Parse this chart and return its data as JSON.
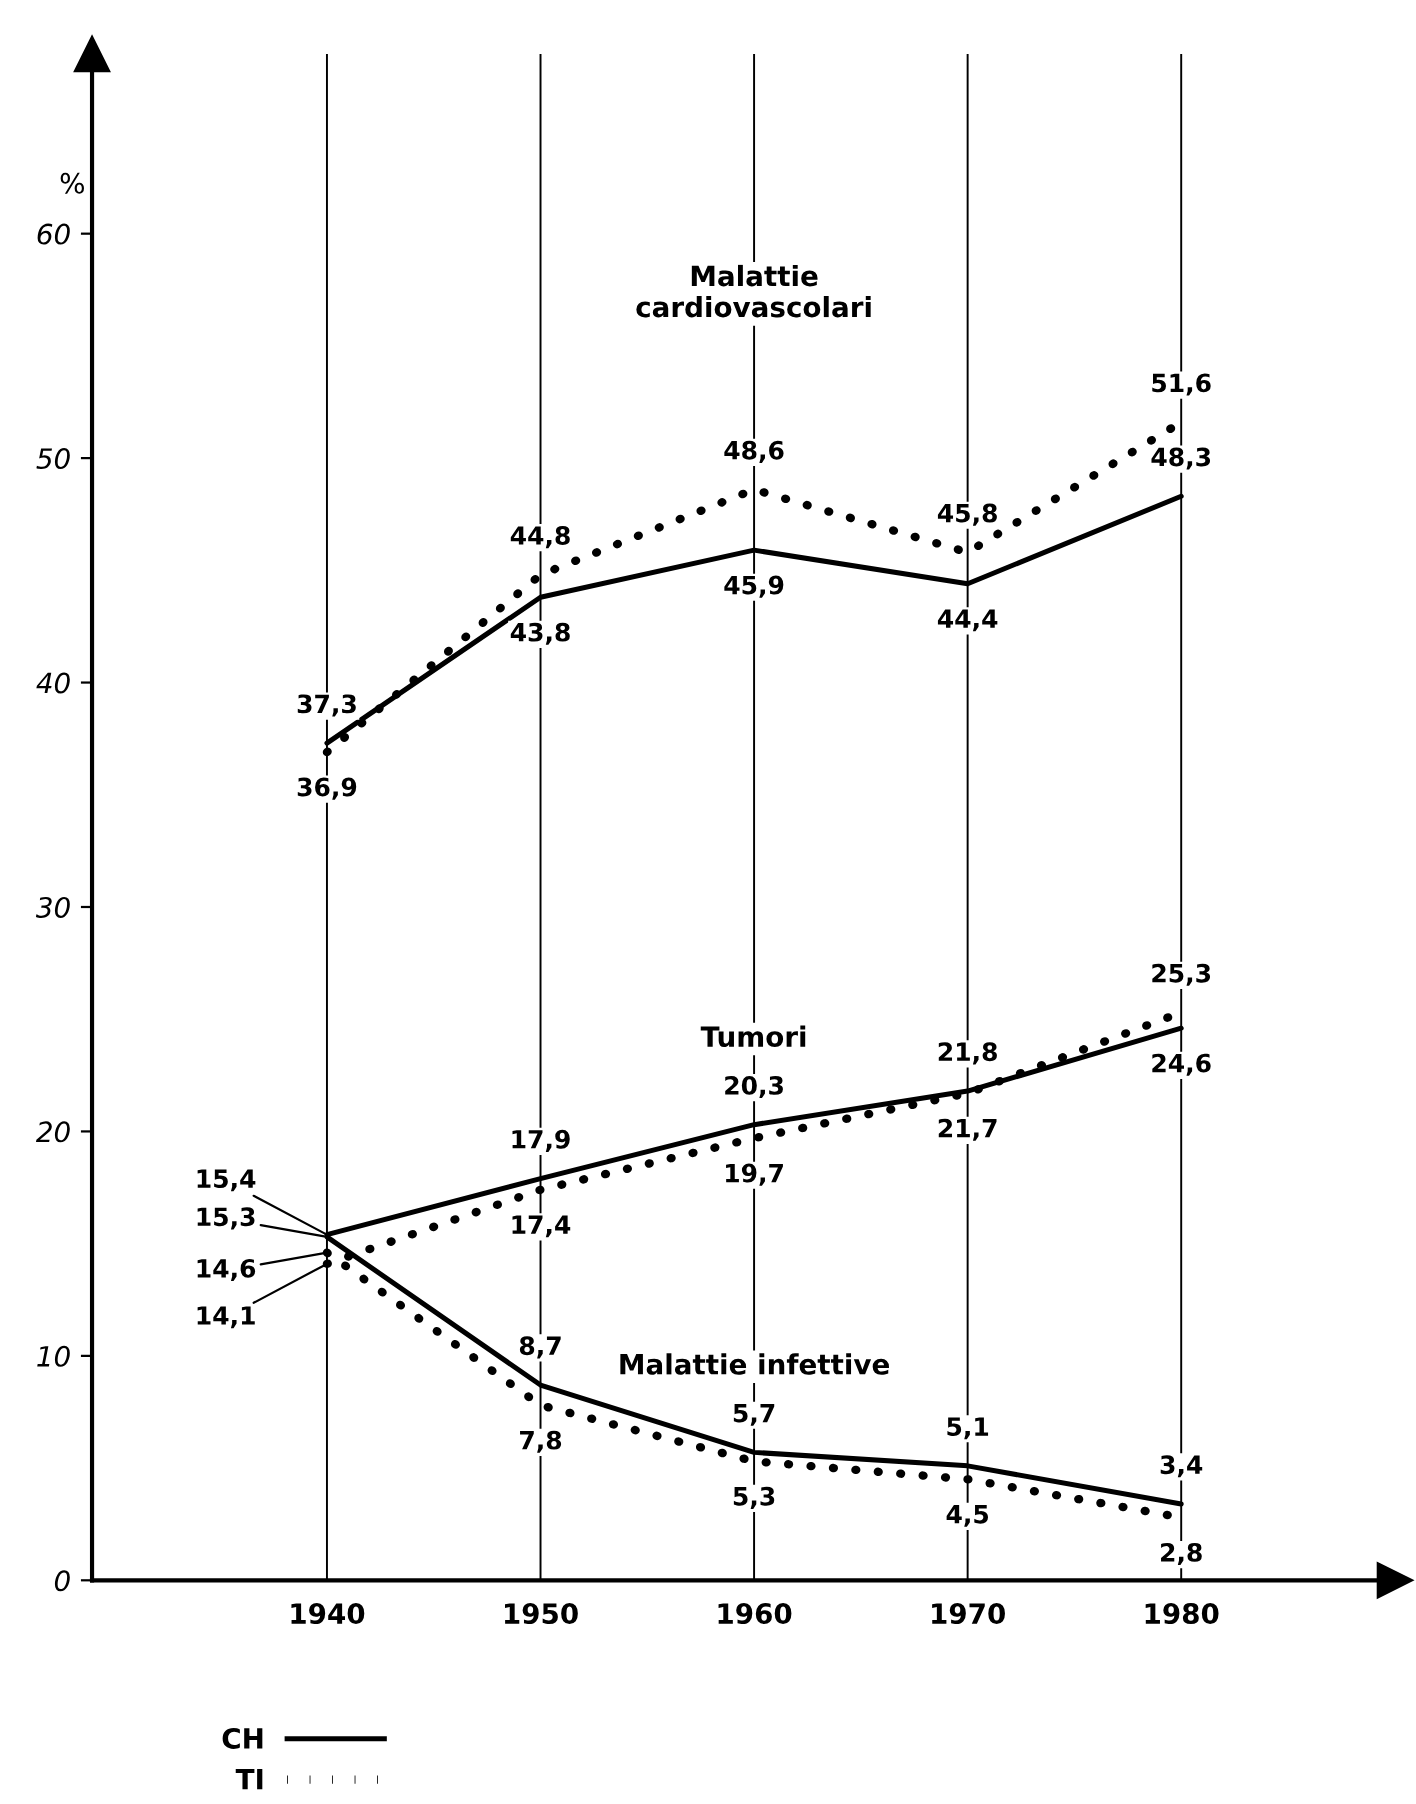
{
  "chart_data": {
    "type": "line",
    "ylabel": "%",
    "x": [
      1940,
      1950,
      1960,
      1970,
      1980
    ],
    "xlim": [
      1929,
      1990
    ],
    "xticks": [
      1940,
      1950,
      1960,
      1970,
      1980
    ],
    "ylim": [
      0,
      68
    ],
    "yticks": [
      0,
      10,
      20,
      30,
      40,
      50,
      60
    ],
    "grid": "x",
    "legend": "bottom left",
    "marker": "none",
    "series": [
      {
        "name": "CH",
        "color": "#000000",
        "line_style": "solid",
        "values": [
          37.3,
          43.8,
          45.9,
          44.4,
          48.3
        ],
        "value_labels": [
          "37,3",
          "43,8",
          "45,9",
          "44,4",
          "48,3"
        ]
      },
      {
        "name": "TI",
        "color": "#000000",
        "line_style": "dotted",
        "values": [
          36.9,
          44.8,
          48.6,
          45.8,
          51.6
        ],
        "value_labels": [
          "36,9",
          "44,8",
          "48,6",
          "45,8",
          "51,6"
        ]
      },
      {
        "color": "#000000",
        "line_style": "solid",
        "values": [
          15.4,
          17.9,
          20.3,
          21.8,
          24.6
        ],
        "value_labels": [
          "15,4",
          "17,9",
          "20,3",
          "21,8",
          "24,6"
        ]
      },
      {
        "color": "#000000",
        "line_style": "dotted",
        "values": [
          14.1,
          17.4,
          19.7,
          21.7,
          25.3
        ],
        "value_labels": [
          "14,1",
          "17,4",
          "19,7",
          "21,7",
          "25,3"
        ]
      },
      {
        "color": "#000000",
        "line_style": "solid",
        "values": [
          15.3,
          8.7,
          5.7,
          5.1,
          3.4
        ],
        "value_labels": [
          "15,3",
          "8,7",
          "5,7",
          "5,1",
          "3,4"
        ]
      },
      {
        "color": "#000000",
        "line_style": "dotted",
        "values": [
          14.6,
          7.8,
          5.3,
          4.5,
          2.8
        ],
        "value_labels": [
          "14,6",
          "7,8",
          "5,3",
          "4,5",
          "2,8"
        ]
      }
    ],
    "annotations": [
      "Malattie\ncardiovascolari",
      "Tumori",
      "Malattie infettive"
    ]
  }
}
